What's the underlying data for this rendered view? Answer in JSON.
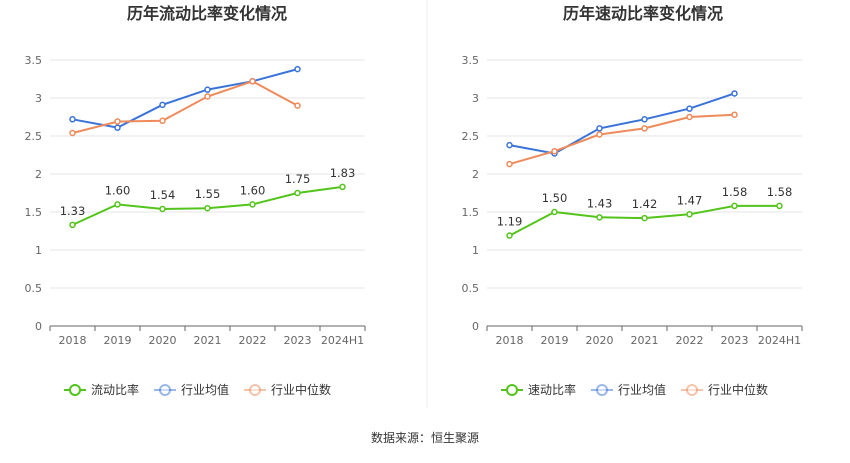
{
  "source_note": "数据来源：恒生聚源",
  "chart_data": [
    {
      "type": "line",
      "title": "历年流动比率变化情况",
      "categories": [
        "2018",
        "2019",
        "2020",
        "2021",
        "2022",
        "2023",
        "2024H1"
      ],
      "ylim": [
        0,
        3.5
      ],
      "yticks": [
        "0",
        "0.5",
        "1",
        "1.5",
        "2",
        "2.5",
        "3",
        "3.5"
      ],
      "grid": true,
      "legend_position": "bottom",
      "series": [
        {
          "name": "流动比率",
          "color": "#52c41a",
          "values": [
            1.33,
            1.6,
            1.54,
            1.55,
            1.6,
            1.75,
            1.83
          ],
          "labels": [
            "1.33",
            "1.60",
            "1.54",
            "1.55",
            "1.60",
            "1.75",
            "1.83"
          ]
        },
        {
          "name": "行业均值",
          "color": "#3a73d8",
          "values": [
            2.72,
            2.61,
            2.91,
            3.11,
            3.22,
            3.38,
            null
          ]
        },
        {
          "name": "行业中位数",
          "color": "#ef8a5a",
          "values": [
            2.54,
            2.69,
            2.7,
            3.02,
            3.22,
            2.9,
            null
          ]
        }
      ]
    },
    {
      "type": "line",
      "title": "历年速动比率变化情况",
      "categories": [
        "2018",
        "2019",
        "2020",
        "2021",
        "2022",
        "2023",
        "2024H1"
      ],
      "ylim": [
        0,
        3.5
      ],
      "yticks": [
        "0",
        "0.5",
        "1",
        "1.5",
        "2",
        "2.5",
        "3",
        "3.5"
      ],
      "grid": true,
      "legend_position": "bottom",
      "series": [
        {
          "name": "速动比率",
          "color": "#52c41a",
          "values": [
            1.19,
            1.5,
            1.43,
            1.42,
            1.47,
            1.58,
            1.58
          ],
          "labels": [
            "1.19",
            "1.50",
            "1.43",
            "1.42",
            "1.47",
            "1.58",
            "1.58"
          ]
        },
        {
          "name": "行业均值",
          "color": "#3a73d8",
          "values": [
            2.38,
            2.27,
            2.6,
            2.72,
            2.86,
            3.06,
            null
          ]
        },
        {
          "name": "行业中位数",
          "color": "#ef8a5a",
          "values": [
            2.13,
            2.3,
            2.52,
            2.6,
            2.75,
            2.78,
            null
          ]
        }
      ]
    }
  ]
}
